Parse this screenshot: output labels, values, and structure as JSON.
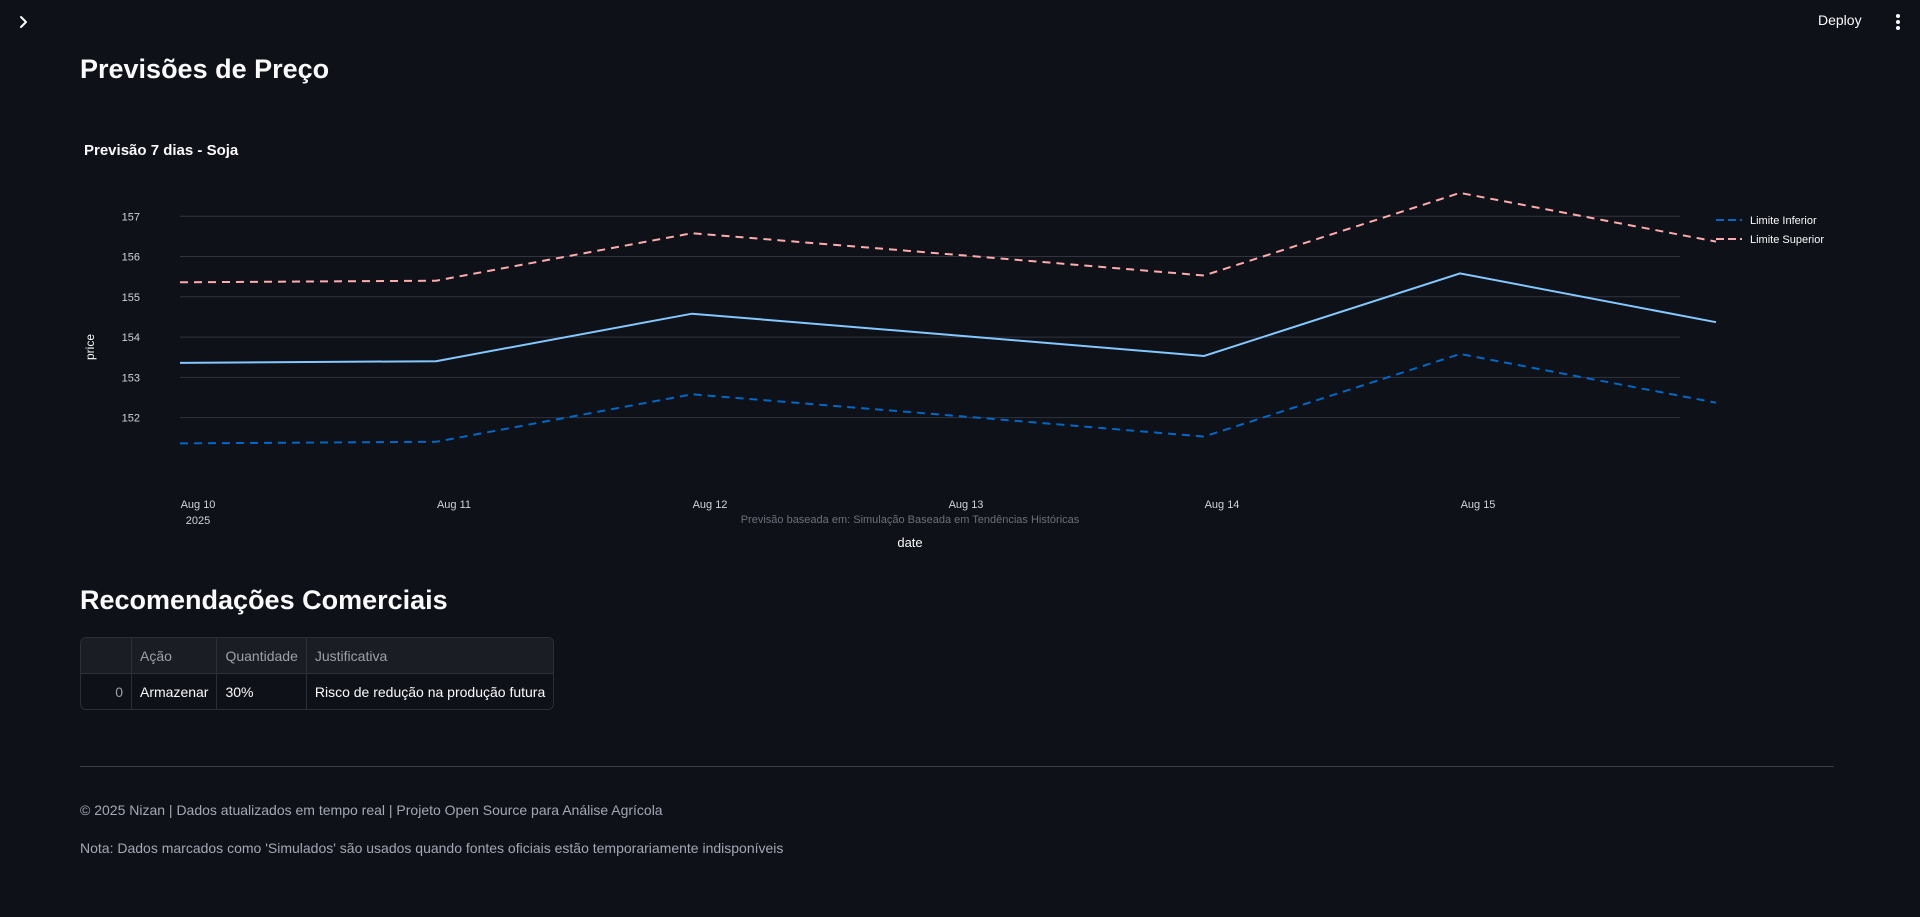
{
  "header": {
    "deploy_label": "Deploy",
    "sidebar_toggle_icon": "chevron-right-icon",
    "menu_icon": "vertical-dots-icon"
  },
  "page": {
    "title": "Previsões de Preço"
  },
  "chart_data": {
    "type": "line",
    "title": "Previsão 7 dias - Soja",
    "xlabel": "date",
    "ylabel": "price",
    "annotation": "Previsão baseada em: Simulação Baseada em Tendências Históricas",
    "x": [
      "2025-08-10",
      "2025-08-11",
      "2025-08-12",
      "2025-08-13",
      "2025-08-14",
      "2025-08-15",
      "2025-08-16"
    ],
    "x_tick_labels": [
      "Aug 10",
      "Aug 11",
      "Aug 12",
      "Aug 13",
      "Aug 14",
      "Aug 15"
    ],
    "x_tick_sublabel": "2025",
    "y_ticks": [
      152,
      153,
      154,
      155,
      156,
      157
    ],
    "ylim": [
      150.7,
      157.9
    ],
    "grid": true,
    "legend_placement": "top-right",
    "series": [
      {
        "name": "",
        "values": [
          153.36,
          153.4,
          154.58,
          154.06,
          153.53,
          155.58,
          154.37
        ],
        "color": "#83c9ff",
        "dash": "solid"
      },
      {
        "name": "Limite Inferior",
        "values": [
          151.36,
          151.4,
          152.58,
          152.06,
          151.53,
          153.58,
          152.37
        ],
        "color": "#0068c9",
        "dash": "dashed"
      },
      {
        "name": "Limite Superior",
        "values": [
          155.36,
          155.4,
          156.58,
          156.06,
          155.53,
          157.58,
          156.37
        ],
        "color": "#ffabab",
        "dash": "dashed"
      }
    ],
    "legend": [
      "Limite Inferior",
      "Limite Superior"
    ]
  },
  "recommendations": {
    "title": "Recomendações Comerciais",
    "columns": [
      "",
      "Ação",
      "Quantidade",
      "Justificativa"
    ],
    "rows": [
      [
        "0",
        "Armazenar",
        "30%",
        "Risco de redução na produção futura"
      ]
    ]
  },
  "footer": {
    "line1": "© 2025 Nizan | Dados atualizados em tempo real | Projeto Open Source para Análise Agrícola",
    "line2": "Nota: Dados marcados como 'Simulados' são usados quando fontes oficiais estão temporariamente indisponíveis"
  }
}
